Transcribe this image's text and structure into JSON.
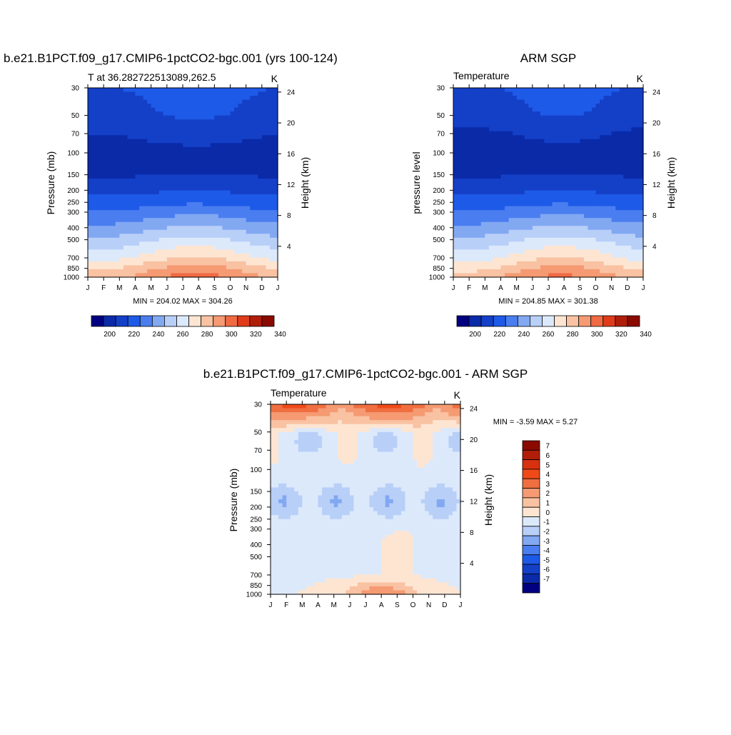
{
  "months": [
    "J",
    "F",
    "M",
    "A",
    "M",
    "J",
    "J",
    "A",
    "S",
    "O",
    "N",
    "D",
    "J"
  ],
  "pressure_ticks": [
    "30",
    "50",
    "70",
    "100",
    "150",
    "200",
    "250",
    "300",
    "400",
    "500",
    "700",
    "850",
    "1000"
  ],
  "height_ticks": [
    "24",
    "20",
    "16",
    "12",
    "8",
    "4"
  ],
  "panels": [
    {
      "title": "b.e21.B1PCT.f09_g17.CMIP6-1pctCO2-bgc.001 (yrs 100-124)",
      "subtitle_left": "T at 36.282722513089,262.5",
      "subtitle_right": "K",
      "ylabel": "Pressure (mb)",
      "ylabel_right": "Height (km)",
      "minmax": "MIN = 204.02 MAX = 304.26"
    },
    {
      "title": "ARM SGP",
      "subtitle_left": "Temperature",
      "subtitle_right": "K",
      "ylabel": "pressure level",
      "ylabel_right": "Height (km)",
      "minmax": "MIN = 204.85 MAX = 301.38"
    },
    {
      "title": "b.e21.B1PCT.f09_g17.CMIP6-1pctCO2-bgc.001 - ARM SGP",
      "subtitle_left": "Temperature",
      "subtitle_right": "K",
      "ylabel": "Pressure (mb)",
      "ylabel_right": "Height (km)",
      "minmax": "MIN =  -3.59 MAX =   5.27"
    }
  ],
  "colorbar_temp": {
    "labels": [
      "200",
      "220",
      "240",
      "260",
      "280",
      "300",
      "320",
      "340"
    ],
    "colors": [
      "#000080",
      "#0a2aa8",
      "#1440c8",
      "#1e5ae8",
      "#4a7ef0",
      "#82a8f2",
      "#b8cff8",
      "#dce9fb",
      "#fde5d2",
      "#f9c2a2",
      "#f59a72",
      "#f06a44",
      "#e03c1c",
      "#b01e0a",
      "#8a0a00"
    ]
  },
  "colorbar_diff": {
    "labels": [
      "7",
      "6",
      "5",
      "4",
      "3",
      "2",
      "1",
      "0",
      "-1",
      "-2",
      "-3",
      "-4",
      "-5",
      "-6",
      "-7"
    ],
    "colors": [
      "#8a0a00",
      "#b01e0a",
      "#d83010",
      "#f04a18",
      "#f06e40",
      "#f59a72",
      "#f9c2a2",
      "#fde5d2",
      "#dce9fb",
      "#b8cff8",
      "#82a8f2",
      "#4a7ef0",
      "#1e5ae8",
      "#1440c8",
      "#0a2aa8",
      "#000080"
    ]
  },
  "chart_data": [
    {
      "type": "heatmap",
      "title": "b.e21.B1PCT.f09_g17.CMIP6-1pctCO2-bgc.001 (yrs 100-124)",
      "variable": "T",
      "units": "K",
      "xlabel": "",
      "ylabel": "Pressure (mb)",
      "ylabel_right": "Height (km)",
      "x_categories": [
        "J",
        "F",
        "M",
        "A",
        "M",
        "J",
        "J",
        "A",
        "S",
        "O",
        "N",
        "D",
        "J"
      ],
      "pressure_levels_mb": [
        30,
        50,
        70,
        100,
        150,
        200,
        250,
        300,
        400,
        500,
        700,
        850,
        1000
      ],
      "height_km_ticks": [
        24,
        20,
        16,
        12,
        8,
        4
      ],
      "contour_levels": [
        190,
        200,
        210,
        220,
        230,
        240,
        250,
        260,
        270,
        280,
        290,
        300,
        310,
        320,
        330,
        340
      ],
      "min": 204.02,
      "max": 304.26,
      "approx_profile_K": {
        "30": 222,
        "50": 218,
        "70": 212,
        "100": 207,
        "150": 209,
        "200": 218,
        "250": 226,
        "300": 234,
        "400": 247,
        "500": 258,
        "700": 274,
        "850": 287,
        "1000": 296
      },
      "seasonal_amplitude_surface_K": 9
    },
    {
      "type": "heatmap",
      "title": "ARM SGP",
      "variable": "Temperature",
      "units": "K",
      "ylabel": "pressure level",
      "ylabel_right": "Height (km)",
      "x_categories": [
        "J",
        "F",
        "M",
        "A",
        "M",
        "J",
        "J",
        "A",
        "S",
        "O",
        "N",
        "D",
        "J"
      ],
      "pressure_levels_mb": [
        30,
        50,
        70,
        100,
        150,
        200,
        250,
        300,
        400,
        500,
        700,
        850,
        1000
      ],
      "height_km_ticks": [
        24,
        20,
        16,
        12,
        8,
        4
      ],
      "contour_levels": [
        190,
        200,
        210,
        220,
        230,
        240,
        250,
        260,
        270,
        280,
        290,
        300,
        310,
        320,
        330,
        340
      ],
      "min": 204.85,
      "max": 301.38,
      "approx_profile_K": {
        "30": 221,
        "50": 217,
        "70": 210,
        "100": 207,
        "150": 209,
        "200": 218,
        "250": 226,
        "300": 234,
        "400": 247,
        "500": 258,
        "700": 273,
        "850": 285,
        "1000": 294
      },
      "seasonal_amplitude_surface_K": 9
    },
    {
      "type": "heatmap",
      "title": "b.e21.B1PCT.f09_g17.CMIP6-1pctCO2-bgc.001 - ARM SGP",
      "variable": "Temperature",
      "units": "K",
      "ylabel": "Pressure (mb)",
      "ylabel_right": "Height (km)",
      "x_categories": [
        "J",
        "F",
        "M",
        "A",
        "M",
        "J",
        "J",
        "A",
        "S",
        "O",
        "N",
        "D",
        "J"
      ],
      "pressure_levels_mb": [
        30,
        50,
        70,
        100,
        150,
        200,
        250,
        300,
        400,
        500,
        700,
        850,
        1000
      ],
      "height_km_ticks": [
        24,
        20,
        16,
        12,
        8,
        4
      ],
      "contour_levels": [
        -7,
        -6,
        -5,
        -4,
        -3,
        -2,
        -1,
        0,
        1,
        2,
        3,
        4,
        5,
        6,
        7
      ],
      "min": -3.59,
      "max": 5.27,
      "features": "warm bias (3-5 K) at top levels near J-F and S-D; weak cold bias (-1 to -3 K) 100-250 mb; warm bias (2-4 K) near surface May-Oct"
    }
  ]
}
